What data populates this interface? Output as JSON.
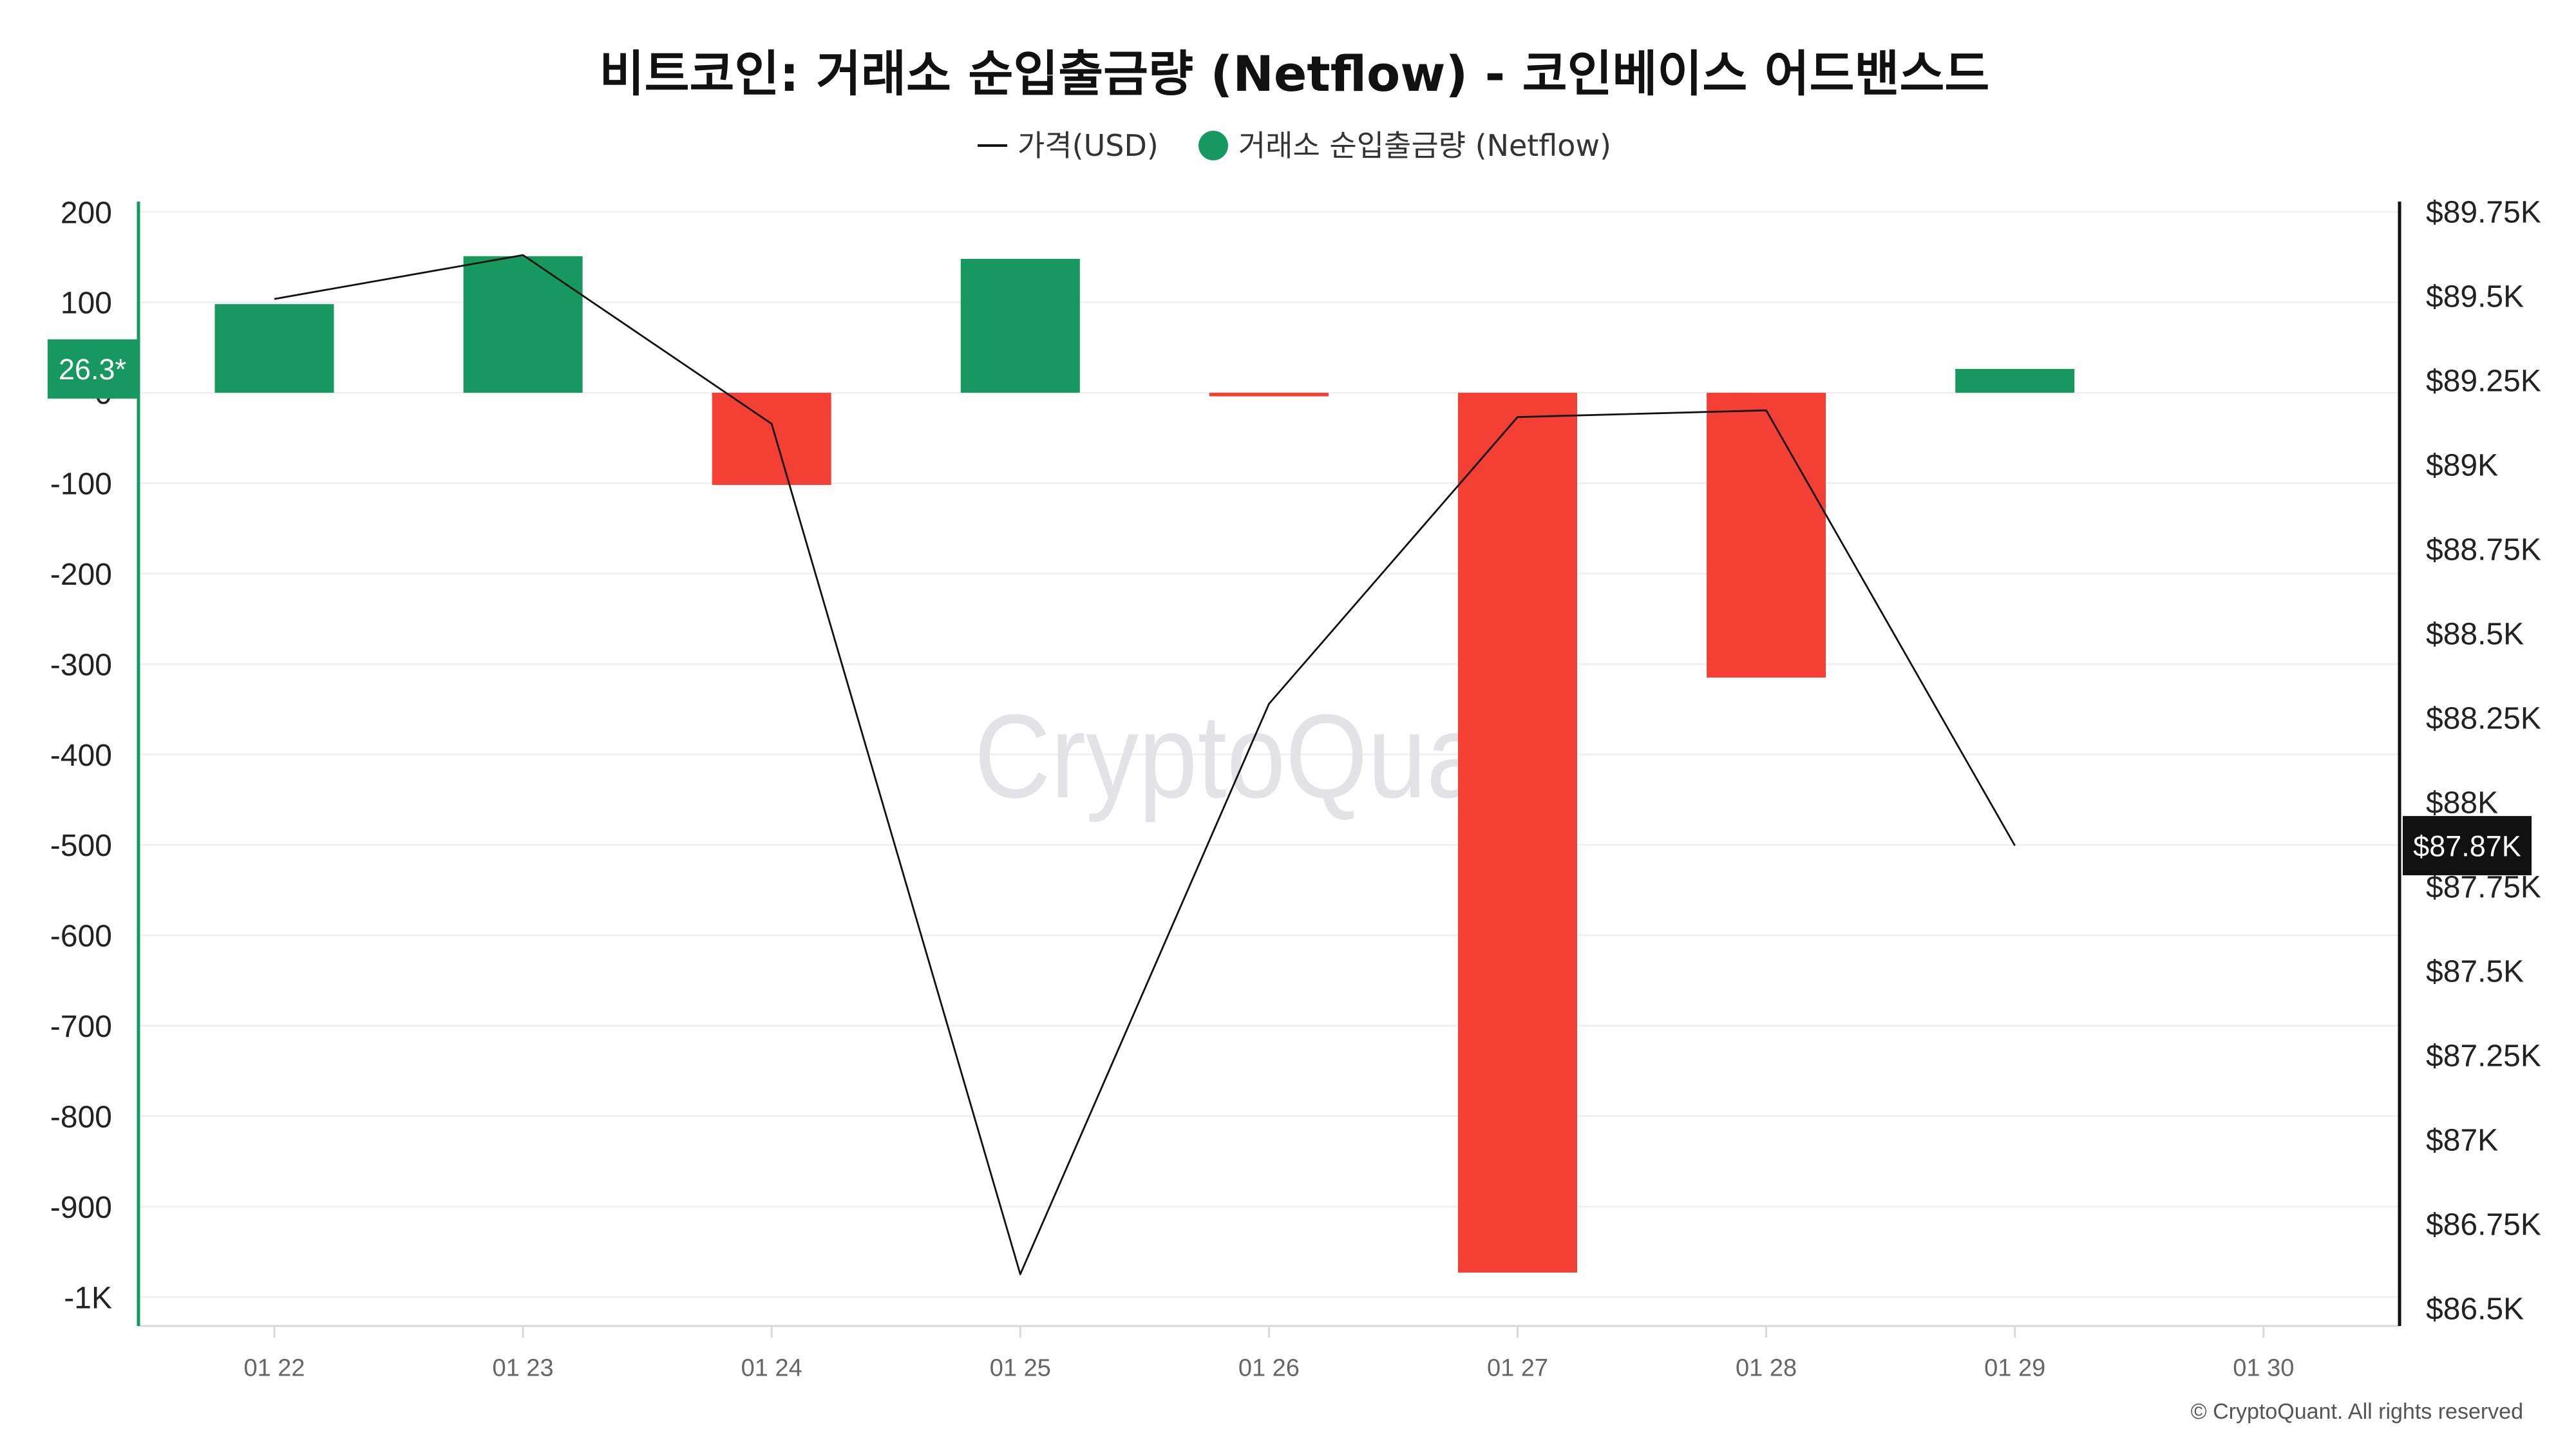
{
  "chart_data": {
    "type": "bar",
    "title": "비트코인: 거래소 순입출금량 (Netflow) - 코인베이스 어드밴스드",
    "categories": [
      "01 22",
      "01 23",
      "01 24",
      "01 25",
      "01 26",
      "01 27",
      "01 28",
      "01 29",
      "01 30"
    ],
    "series": [
      {
        "name": "거래소 순입출금량 (Netflow)",
        "type": "bar",
        "axis": "left",
        "legend_icon": "circle-swatch-icon",
        "values": [
          98,
          151,
          -102,
          148,
          -4,
          -973,
          -315,
          26.3,
          null
        ],
        "positive_color": "#17985e",
        "negative_color": "#f43f35"
      },
      {
        "name": "가격(USD)",
        "type": "line",
        "axis": "right",
        "legend_icon": "line-swatch-icon",
        "values": [
          89490,
          89620,
          89120,
          86600,
          88290,
          89140,
          89160,
          87870,
          null
        ],
        "color": "#111111"
      }
    ],
    "left_axis": {
      "ylim": [
        -1000,
        200
      ],
      "tick_values": [
        200,
        100,
        0,
        -100,
        -200,
        -300,
        -400,
        -500,
        -600,
        -700,
        -800,
        -900,
        -1000
      ],
      "tick_labels": [
        "200",
        "100",
        "0",
        "-100",
        "-200",
        "-300",
        "-400",
        "-500",
        "-600",
        "-700",
        "-800",
        "-900",
        "-1K"
      ],
      "color": "#17985e"
    },
    "right_axis": {
      "ylim": [
        86500,
        89750
      ],
      "tick_values": [
        89750,
        89500,
        89250,
        89000,
        88750,
        88500,
        88250,
        88000,
        87750,
        87500,
        87250,
        87000,
        86750,
        86500
      ],
      "tick_labels": [
        "$89.75K",
        "$89.5K",
        "$89.25K",
        "$89K",
        "$88.75K",
        "$88.5K",
        "$88.25K",
        "$88K",
        "$87.75K",
        "$87.5K",
        "$87.25K",
        "$87K",
        "$86.75K",
        "$86.5K"
      ],
      "color": "#111111"
    },
    "current_values": {
      "netflow_label": "26.3*",
      "price_label": "$87.87K"
    },
    "grid": true,
    "legend_position": "top-center"
  },
  "watermark": "CryptoQuant",
  "copyright": "© CryptoQuant. All rights reserved"
}
